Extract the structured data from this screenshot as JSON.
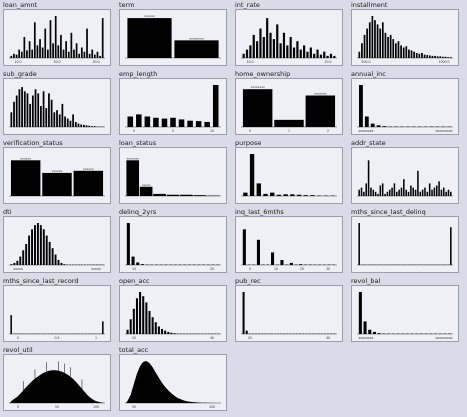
{
  "chart_data": [
    {
      "type": "bar",
      "title": "loan_amnt",
      "values": [
        0.05,
        0.1,
        0.08,
        0.2,
        0.15,
        0.5,
        0.18,
        0.4,
        0.2,
        0.85,
        0.3,
        0.45,
        0.25,
        0.7,
        0.2,
        0.9,
        0.35,
        1.0,
        0.3,
        0.55,
        0.2,
        0.4,
        0.15,
        0.6,
        0.2,
        0.35,
        0.1,
        0.25,
        0.15,
        0.7,
        0.1,
        0.2,
        0.08,
        0.15,
        0.05,
        0.95
      ],
      "ticks": [
        "10.0",
        "20.0",
        "30.0"
      ]
    },
    {
      "type": "bar",
      "title": "term",
      "values": [
        0.95,
        0.42
      ],
      "labels": [
        "xxxxxx",
        "xxxxxxxx"
      ]
    },
    {
      "type": "bar",
      "title": "int_rate",
      "values": [
        0.1,
        0.2,
        0.3,
        0.55,
        0.4,
        0.7,
        0.5,
        0.95,
        0.6,
        0.45,
        0.8,
        0.35,
        0.6,
        0.3,
        0.5,
        0.25,
        0.4,
        0.2,
        0.3,
        0.15,
        0.25,
        0.1,
        0.2,
        0.08,
        0.15,
        0.05,
        0.1,
        0.05
      ],
      "ticks": [
        "10.0",
        "20.0"
      ]
    },
    {
      "type": "bar",
      "title": "installment",
      "values": [
        0.15,
        0.35,
        0.55,
        0.7,
        0.85,
        1.0,
        0.9,
        0.8,
        0.7,
        0.85,
        0.6,
        0.5,
        0.55,
        0.45,
        0.35,
        0.4,
        0.3,
        0.25,
        0.28,
        0.2,
        0.18,
        0.15,
        0.12,
        0.1,
        0.12,
        0.08,
        0.07,
        0.06,
        0.05,
        0.05,
        0.04,
        0.04,
        0.03,
        0.03,
        0.02,
        0.02
      ],
      "ticks": [
        "500.0",
        "1000.0"
      ]
    },
    {
      "type": "bar",
      "title": "sub_grade",
      "values": [
        0.35,
        0.6,
        0.75,
        0.9,
        0.95,
        0.85,
        0.8,
        0.55,
        0.75,
        0.9,
        0.8,
        0.5,
        0.85,
        0.45,
        0.8,
        0.65,
        0.35,
        0.4,
        0.3,
        0.55,
        0.25,
        0.2,
        0.15,
        0.3,
        0.12,
        0.08,
        0.06,
        0.05,
        0.04,
        0.03,
        0.02,
        0.02,
        0.01,
        0.01,
        0.01
      ]
    },
    {
      "type": "bar",
      "title": "emp_length",
      "values": [
        0.25,
        0.3,
        0.25,
        0.22,
        0.2,
        0.22,
        0.18,
        0.15,
        0.14,
        0.12,
        1.0
      ],
      "ticks": [
        "0",
        "5",
        "10"
      ]
    },
    {
      "type": "bar",
      "title": "home_ownership",
      "values": [
        0.9,
        0.17,
        0.75
      ],
      "labels": [
        "xxxxxxxx",
        "",
        "xxxxxxx"
      ],
      "ticks": [
        "0",
        "1",
        "2"
      ]
    },
    {
      "type": "bar",
      "title": "annual_inc",
      "values": [
        1.0,
        0.25,
        0.08,
        0.04,
        0.02,
        0.01,
        0.01,
        0.005,
        0.004,
        0.003,
        0.003,
        0.002,
        0.002,
        0.002,
        0.001,
        0.001
      ],
      "ticks": [
        "xxxxxxxx",
        "xxxxxxxxx"
      ]
    },
    {
      "type": "bar",
      "title": "verification_status",
      "values": [
        0.85,
        0.55,
        0.6
      ],
      "labels": [
        "xxxxxx",
        "xxxxxx",
        "xxxxxx"
      ]
    },
    {
      "type": "bar",
      "title": "loan_status",
      "values": [
        0.85,
        0.22,
        0.05,
        0.03,
        0.03,
        0.02,
        0.01
      ],
      "labels": [
        "xxxxxxx",
        "xxxxx",
        "",
        "",
        "",
        "",
        ""
      ]
    },
    {
      "type": "bar",
      "title": "purpose",
      "values": [
        0.08,
        1.0,
        0.3,
        0.05,
        0.08,
        0.03,
        0.04,
        0.04,
        0.03,
        0.02,
        0.02,
        0.01,
        0.01,
        0.01
      ]
    },
    {
      "type": "bar",
      "title": "addr_state",
      "values": [
        0.15,
        0.2,
        0.1,
        0.3,
        0.85,
        0.2,
        0.15,
        0.1,
        0.05,
        0.25,
        0.3,
        0.05,
        0.1,
        0.15,
        0.2,
        0.3,
        0.1,
        0.15,
        0.2,
        0.4,
        0.15,
        0.1,
        0.25,
        0.2,
        0.15,
        0.6,
        0.1,
        0.15,
        0.2,
        0.1,
        0.3,
        0.15,
        0.2,
        0.25,
        0.35,
        0.15,
        0.2,
        0.1,
        0.15,
        0.1
      ]
    },
    {
      "type": "bar",
      "title": "dti",
      "values": [
        0.02,
        0.05,
        0.1,
        0.2,
        0.35,
        0.5,
        0.7,
        0.85,
        0.95,
        1.0,
        0.95,
        0.85,
        0.7,
        0.55,
        0.4,
        0.25,
        0.12,
        0.05,
        0.02,
        0.01,
        0.005,
        0.003,
        0.002,
        0.001,
        0.001,
        0.001,
        0.001,
        0.001,
        0.001,
        0.001,
        0.001,
        0.001
      ],
      "ticks": [
        "xxxxx",
        "xxxxx"
      ]
    },
    {
      "type": "bar",
      "title": "delinq_2yrs",
      "values": [
        1.0,
        0.2,
        0.06,
        0.02,
        0.01,
        0.005,
        0.003,
        0.002,
        0.001,
        0.001,
        0.001,
        0.001,
        0.001,
        0.001,
        0.001,
        0.001,
        0.001,
        0.001,
        0.001,
        0.001
      ],
      "ticks": [
        "10",
        "20"
      ]
    },
    {
      "type": "bar",
      "title": "inq_last_6mths",
      "values": [
        0.85,
        0.001,
        0.001,
        0.6,
        0.001,
        0.001,
        0.3,
        0.001,
        0.12,
        0.001,
        0.05,
        0.001,
        0.02,
        0.001,
        0.01,
        0.001,
        0.005,
        0.001,
        0.002,
        0.001
      ],
      "ticks": [
        "0",
        "10",
        "20",
        "30"
      ]
    },
    {
      "type": "bar",
      "title": "mths_since_last_delinq",
      "values": [
        1.0,
        0.004,
        0.004,
        0.004,
        0.004,
        0.004,
        0.004,
        0.004,
        0.004,
        0.004,
        0.004,
        0.004,
        0.004,
        0.004,
        0.004,
        0.004,
        0.004,
        0.004,
        0.004,
        0.004,
        0.004,
        0.004,
        0.004,
        0.004,
        0.004,
        0.004,
        0.004,
        0.004,
        0.004,
        0.004,
        0.004,
        0.004,
        0.004,
        0.004,
        0.004,
        0.004,
        0.004,
        0.004,
        0.004,
        0.9
      ]
    },
    {
      "type": "bar",
      "title": "mths_since_last_record",
      "values": [
        0.45,
        0.004,
        0.004,
        0.004,
        0.004,
        0.004,
        0.004,
        0.004,
        0.004,
        0.004,
        0.004,
        0.004,
        0.004,
        0.004,
        0.004,
        0.004,
        0.004,
        0.004,
        0.004,
        0.004,
        0.004,
        0.004,
        0.004,
        0.004,
        0.004,
        0.004,
        0.004,
        0.004,
        0.004,
        0.004,
        0.004,
        0.004,
        0.004,
        0.004,
        0.004,
        0.004,
        0.004,
        0.004,
        0.004,
        0.3
      ],
      "ticks": [
        "0",
        "0.5",
        "1"
      ]
    },
    {
      "type": "bar",
      "title": "open_acc",
      "values": [
        0.1,
        0.35,
        0.6,
        0.85,
        1.0,
        0.9,
        0.75,
        0.55,
        0.4,
        0.28,
        0.18,
        0.12,
        0.08,
        0.05,
        0.03,
        0.02,
        0.01,
        0.01,
        0.005,
        0.003,
        0.002,
        0.001,
        0.001,
        0.001,
        0.001,
        0.001,
        0.001,
        0.001,
        0.001,
        0.001
      ],
      "ticks": [
        "20",
        "40"
      ]
    },
    {
      "type": "bar",
      "title": "pub_rec",
      "values": [
        1.0,
        0.08,
        0.01,
        0.005,
        0.002,
        0.001,
        0.001,
        0.001,
        0.001,
        0.001,
        0.001,
        0.001,
        0.001,
        0.001,
        0.001,
        0.001,
        0.001,
        0.001,
        0.001,
        0.001,
        0.001,
        0.001,
        0.001,
        0.001,
        0.001,
        0.001,
        0.001,
        0.001,
        0.001,
        0.001
      ],
      "ticks": [
        "20",
        "40"
      ]
    },
    {
      "type": "bar",
      "title": "revol_bal",
      "values": [
        1.0,
        0.3,
        0.1,
        0.05,
        0.02,
        0.01,
        0.005,
        0.003,
        0.002,
        0.001,
        0.001,
        0.001,
        0.001,
        0.001,
        0.001,
        0.001,
        0.001,
        0.001,
        0.001,
        0.001
      ],
      "ticks": [
        "xxxxxxxx",
        "xxxxxxxxx"
      ]
    },
    {
      "type": "area",
      "title": "revol_util",
      "values": [
        0.05,
        0.1,
        0.15,
        0.22,
        0.3,
        0.38,
        0.45,
        0.52,
        0.58,
        0.63,
        0.68,
        0.72,
        0.75,
        0.77,
        0.78,
        0.78,
        0.77,
        0.75,
        0.72,
        0.68,
        0.63,
        0.57,
        0.5,
        0.42,
        0.34,
        0.26,
        0.18,
        0.12,
        0.07,
        0.04,
        0.02,
        0.01
      ],
      "spikes": [
        4,
        8,
        12,
        16,
        18,
        20,
        24
      ],
      "ticks": [
        "0",
        "50",
        "100"
      ]
    },
    {
      "type": "area",
      "title": "total_acc",
      "values": [
        0.05,
        0.2,
        0.45,
        0.7,
        0.88,
        0.98,
        1.0,
        0.95,
        0.85,
        0.72,
        0.6,
        0.48,
        0.38,
        0.3,
        0.23,
        0.17,
        0.12,
        0.09,
        0.06,
        0.04,
        0.03,
        0.02,
        0.015,
        0.01,
        0.007,
        0.005,
        0.003,
        0.002,
        0.001,
        0.001
      ],
      "ticks": [
        "50",
        "100"
      ]
    }
  ]
}
